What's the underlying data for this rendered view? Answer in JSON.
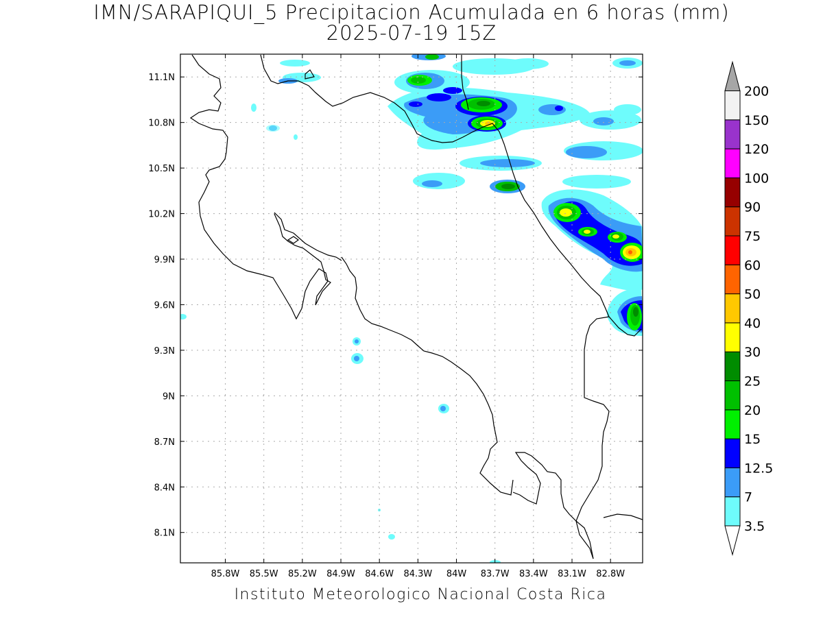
{
  "title": {
    "line1": "IMN/SARAPIQUI_5 Precipitacion Acumulada en 6 horas (mm)",
    "line2": "2025-07-19 15Z"
  },
  "footer": "Instituto Meteorologico Nacional Costa Rica",
  "map": {
    "lon_range": [
      -86.15,
      -82.55
    ],
    "lat_range": [
      7.9,
      11.25
    ],
    "x_ticks": [
      {
        "lon": -85.8,
        "label": "85.8W"
      },
      {
        "lon": -85.5,
        "label": "85.5W"
      },
      {
        "lon": -85.2,
        "label": "85.2W"
      },
      {
        "lon": -84.9,
        "label": "84.9W"
      },
      {
        "lon": -84.6,
        "label": "84.6W"
      },
      {
        "lon": -84.3,
        "label": "84.3W"
      },
      {
        "lon": -84.0,
        "label": "84W"
      },
      {
        "lon": -83.7,
        "label": "83.7W"
      },
      {
        "lon": -83.4,
        "label": "83.4W"
      },
      {
        "lon": -83.1,
        "label": "83.1W"
      },
      {
        "lon": -82.8,
        "label": "82.8W"
      }
    ],
    "y_ticks": [
      {
        "lat": 11.1,
        "label": "11.1N"
      },
      {
        "lat": 10.8,
        "label": "10.8N"
      },
      {
        "lat": 10.5,
        "label": "10.5N"
      },
      {
        "lat": 10.2,
        "label": "10.2N"
      },
      {
        "lat": 9.9,
        "label": "9.9N"
      },
      {
        "lat": 9.6,
        "label": "9.6N"
      },
      {
        "lat": 9.3,
        "label": "9.3N"
      },
      {
        "lat": 9.0,
        "label": "9N"
      },
      {
        "lat": 8.7,
        "label": "8.7N"
      },
      {
        "lat": 8.4,
        "label": "8.4N"
      },
      {
        "lat": 8.1,
        "label": "8.1N"
      }
    ],
    "grid": true
  },
  "colorbar": {
    "levels": [
      "3.5",
      "7",
      "12.5",
      "15",
      "20",
      "25",
      "30",
      "40",
      "50",
      "60",
      "75",
      "90",
      "100",
      "120",
      "150",
      "200"
    ],
    "colors": [
      "#6efcfc",
      "#3b9cf7",
      "#0000ff",
      "#00f000",
      "#00c000",
      "#008c00",
      "#ffff00",
      "#ffc800",
      "#ff6400",
      "#ff0000",
      "#cc3300",
      "#960000",
      "#ff00ff",
      "#9933cc",
      "#f2f2f2",
      "#a6a6a6"
    ]
  },
  "precip_cells": [
    {
      "lon": -83.88,
      "lat": 11.0,
      "level": 4
    },
    {
      "lon": -83.95,
      "lat": 11.05,
      "level": 2
    },
    {
      "lon": -83.66,
      "lat": 10.98,
      "level": 5
    },
    {
      "lon": -83.61,
      "lat": 10.86,
      "level": 8
    },
    {
      "lon": -83.42,
      "lat": 10.99,
      "level": 2
    },
    {
      "lon": -83.15,
      "lat": 10.95,
      "level": 2
    },
    {
      "lon": -82.84,
      "lat": 10.86,
      "level": 2
    },
    {
      "lon": -83.5,
      "lat": 10.43,
      "level": 5
    },
    {
      "lon": -83.6,
      "lat": 10.62,
      "level": 1
    },
    {
      "lon": -83.22,
      "lat": 10.6,
      "level": 1
    },
    {
      "lon": -83.0,
      "lat": 10.3,
      "level": 7
    },
    {
      "lon": -82.88,
      "lat": 10.14,
      "level": 6
    },
    {
      "lon": -82.73,
      "lat": 10.12,
      "level": 6
    },
    {
      "lon": -82.62,
      "lat": 10.02,
      "level": 9
    },
    {
      "lon": -82.6,
      "lat": 9.62,
      "level": 5
    },
    {
      "lon": -84.0,
      "lat": 9.0,
      "level": 1
    },
    {
      "lon": -84.65,
      "lat": 9.43,
      "level": 1
    },
    {
      "lon": -84.65,
      "lat": 9.32,
      "level": 1
    }
  ]
}
